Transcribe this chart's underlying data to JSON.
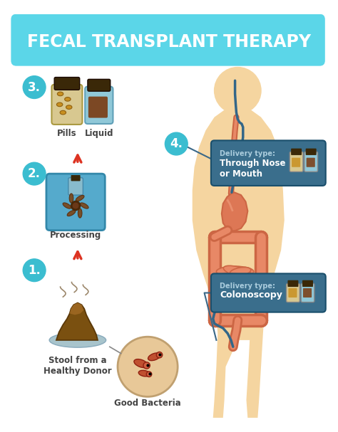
{
  "title": "FECAL TRANSPLANT THERAPY",
  "title_bg_top": "#5BD6E8",
  "title_bg_bot": "#2AAAC0",
  "title_text_color": "#FFFFFF",
  "bg_color": "#FFFFFF",
  "body_silhouette": "#F5D5A0",
  "body_shadow": "#ECC080",
  "intestine_outer": "#CC6644",
  "intestine_inner": "#E88866",
  "intestine_dark": "#BB5533",
  "stomach_color": "#DD7755",
  "step_circle_color": "#3BBDD0",
  "step_text_color": "#FFFFFF",
  "arrow_color": "#DD3322",
  "delivery_box_color": "#3A6E8C",
  "delivery_label_color": "#AACCDD",
  "delivery_text_color": "#FFFFFF",
  "label_color": "#444444",
  "processing_box_color": "#55AACC",
  "processing_box_dark": "#3388AA",
  "stool_color": "#7A5010",
  "stool_dark": "#5A3808",
  "stool_base_color": "#A8C4CC",
  "bacteria_circle_color": "#E8C898",
  "bacteria_body_color": "#C05030",
  "tube_color": "#336688",
  "pill_bottle_color": "#D8C890",
  "pill_bottle_dark": "#AA9940",
  "pill_cap_color": "#3A2808",
  "pill_color": "#C89020",
  "liquid_bottle_color": "#90C8D8",
  "liquid_bottle_dark": "#60A0B8",
  "liquid_color": "#7A3A10",
  "line_color": "#3A6888",
  "steps": [
    "1.",
    "2.",
    "3."
  ],
  "step4": "4.",
  "step1_label": "Stool from a\nHealthy Donor",
  "step2_label": "Processing",
  "step3_pills_label": "Pills",
  "step3_liquid_label": "Liquid",
  "good_bacteria_label": "Good Bacteria",
  "delivery1_label": "Delivery type:",
  "delivery1_text": "Through Nose\nor Mouth",
  "delivery2_label": "Delivery type:",
  "delivery2_text": "Colonoscopy"
}
